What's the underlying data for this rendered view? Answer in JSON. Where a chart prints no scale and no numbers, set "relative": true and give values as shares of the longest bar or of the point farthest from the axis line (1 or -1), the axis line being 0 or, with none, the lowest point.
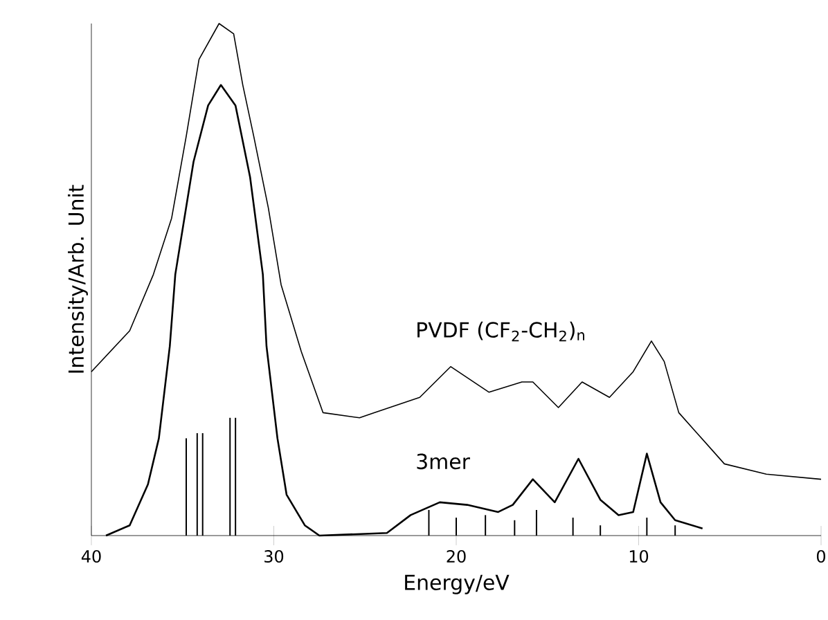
{
  "chart_data": {
    "type": "line",
    "xlabel": "Energy/eV",
    "ylabel": "Intensity/Arb. Unit",
    "relative": true,
    "xlim": [
      40,
      0
    ],
    "xticks": [
      40,
      30,
      20,
      10,
      0
    ],
    "marker": "none",
    "legend": false,
    "series": [
      {
        "name": "PVDF  (CF$_{2}$-CH$_{2}$)$_{n}$",
        "color": "#000000",
        "line_style": "solid",
        "x": [
          40.0,
          37.9,
          36.6,
          35.6,
          34.8,
          34.1,
          33.0,
          32.2,
          31.7,
          31.1,
          30.3,
          29.6,
          28.5,
          27.3,
          25.3,
          24.5,
          22.0,
          20.3,
          18.2,
          16.4,
          15.8,
          14.4,
          13.1,
          11.6,
          10.3,
          9.3,
          8.6,
          7.8,
          6.8,
          5.3,
          3.0,
          0.0
        ],
        "values": [
          0.32,
          0.4,
          0.51,
          0.62,
          0.78,
          0.93,
          1.0,
          0.98,
          0.88,
          0.78,
          0.64,
          0.49,
          0.36,
          0.24,
          0.23,
          0.24,
          0.27,
          0.33,
          0.28,
          0.3,
          0.3,
          0.25,
          0.3,
          0.27,
          0.32,
          0.38,
          0.34,
          0.24,
          0.2,
          0.14,
          0.12,
          0.11
        ]
      },
      {
        "name": "3mer",
        "color": "#000000",
        "line_style": "solid",
        "x": [
          39.2,
          37.9,
          36.9,
          36.3,
          35.7,
          35.4,
          34.4,
          33.6,
          32.9,
          32.1,
          31.3,
          30.6,
          30.4,
          29.8,
          29.3,
          28.3,
          27.5,
          23.8,
          22.5,
          20.9,
          19.4,
          17.7,
          16.9,
          15.8,
          14.6,
          13.3,
          12.1,
          11.1,
          10.3,
          9.55,
          8.8,
          8.0,
          6.5
        ],
        "values": [
          0.0,
          0.02,
          0.1,
          0.19,
          0.37,
          0.51,
          0.73,
          0.84,
          0.88,
          0.84,
          0.7,
          0.51,
          0.37,
          0.19,
          0.08,
          0.02,
          0.0,
          0.005,
          0.04,
          0.065,
          0.06,
          0.046,
          0.06,
          0.11,
          0.065,
          0.15,
          0.07,
          0.04,
          0.046,
          0.16,
          0.065,
          0.03,
          0.014
        ]
      },
      {
        "type": "bar",
        "color": "#000000",
        "x": [
          34.8,
          34.2,
          33.9,
          32.4,
          32.1,
          21.5,
          20.0,
          18.4,
          16.8,
          15.6,
          13.6,
          12.1,
          9.55,
          8.0
        ],
        "values": [
          0.19,
          0.2,
          0.2,
          0.23,
          0.23,
          0.05,
          0.035,
          0.04,
          0.03,
          0.05,
          0.035,
          0.02,
          0.035,
          0.02
        ]
      }
    ]
  }
}
